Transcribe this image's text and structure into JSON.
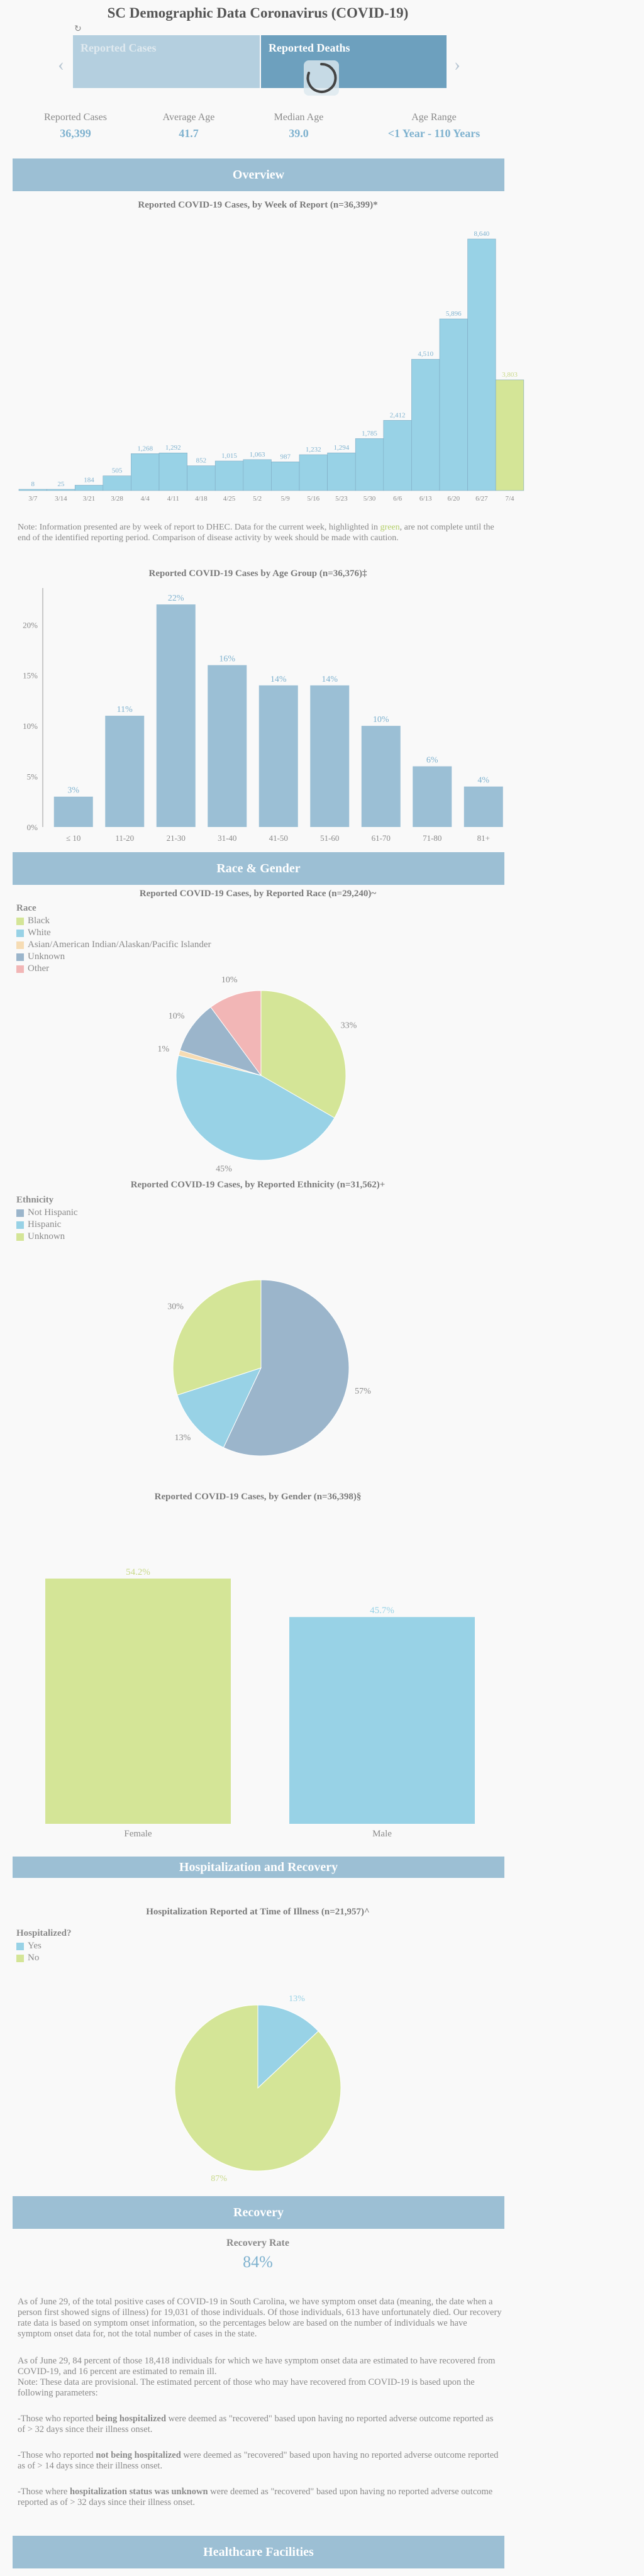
{
  "header": {
    "title": "SC Demographic Data Coronavirus (COVID-19)",
    "refresh_icon": "refresh-icon",
    "tabs": [
      {
        "label": "Reported Cases"
      },
      {
        "label": "Reported Deaths"
      }
    ],
    "prev_icon": "chevron-left-icon",
    "next_icon": "chevron-right-icon",
    "loading_icon": "spinner-icon"
  },
  "stats": [
    {
      "label": "Reported Cases",
      "value": "36,399"
    },
    {
      "label": "Average Age",
      "value": "41.7"
    },
    {
      "label": "Median Age",
      "value": "39.0"
    },
    {
      "label": "Age Range",
      "value": "<1 Year - 110 Years"
    }
  ],
  "sections": {
    "overview": "Overview",
    "race_gender": "Race & Gender",
    "hospitalization": "Hospitalization and Recovery",
    "recovery": "Recovery",
    "healthcare": "Healthcare Facilities"
  },
  "colors": {
    "accent": "#7fb2cf",
    "banner": "#9cbfd4",
    "bar": "#9bbfd5",
    "bar_light": "#98d2e6",
    "highlight": "#d4e597",
    "pink": "#f2b6b6",
    "gray_blue": "#9bb5cb",
    "cream": "#f6dcb4"
  },
  "weekly_note_parts": {
    "before": "Note: Information presented are by week of report to DHEC. Data for the current week, highlighted in ",
    "highlight": "green",
    "after": ", are not complete until the end of the identified reporting period. Comparison of disease activity by week should be made with caution."
  },
  "chart_data": [
    {
      "type": "bar",
      "title": "Reported COVID-19 Cases, by Week of Report (n=36,399)*",
      "categories": [
        "3/7",
        "3/14",
        "3/21",
        "3/28",
        "4/4",
        "4/11",
        "4/18",
        "4/25",
        "5/2",
        "5/9",
        "5/16",
        "5/23",
        "5/30",
        "6/6",
        "6/13",
        "6/20",
        "6/27",
        "7/4"
      ],
      "values": [
        8,
        25,
        184,
        505,
        1268,
        1292,
        852,
        1015,
        1063,
        987,
        1232,
        1294,
        1785,
        2412,
        4510,
        5896,
        8640,
        3803
      ],
      "labels": [
        "8",
        "25",
        "184",
        "505",
        "1,268",
        "1,292",
        "852",
        "1,015",
        "1,063",
        "987",
        "1,232",
        "1,294",
        "1,785",
        "2,412",
        "4,510",
        "5,896",
        "8,640",
        "3,803"
      ],
      "highlight_last": true,
      "ylim": [
        0,
        8640
      ],
      "grid": false
    },
    {
      "type": "bar",
      "title": "Reported COVID-19 Cases by Age Group (n=36,376)‡",
      "categories": [
        "≤ 10",
        "11-20",
        "21-30",
        "31-40",
        "41-50",
        "51-60",
        "61-70",
        "71-80",
        "81+"
      ],
      "values": [
        3,
        11,
        22,
        16,
        14,
        14,
        10,
        6,
        4
      ],
      "labels": [
        "3%",
        "11%",
        "22%",
        "16%",
        "14%",
        "14%",
        "10%",
        "6%",
        "4%"
      ],
      "yticks": [
        "0%",
        "5%",
        "10%",
        "15%",
        "20%"
      ],
      "ylim": [
        0,
        23
      ],
      "grid": false
    },
    {
      "type": "pie",
      "title": "Reported COVID-19 Cases, by Reported Race (n=29,240)~",
      "legend_title": "Race",
      "legend_position": "top-left",
      "slices": [
        {
          "name": "Black",
          "value": 33,
          "label": "33%",
          "color": "#d4e597"
        },
        {
          "name": "White",
          "value": 45,
          "label": "45%",
          "color": "#98d2e6"
        },
        {
          "name": "Asian/American Indian/Alaskan/Pacific Islander",
          "value": 1,
          "label": "1%",
          "color": "#f6dcb4"
        },
        {
          "name": "Unknown",
          "value": 10,
          "label": "10%",
          "color": "#9bb5cb"
        },
        {
          "name": "Other",
          "value": 10,
          "label": "10%",
          "color": "#f2b6b6"
        }
      ]
    },
    {
      "type": "pie",
      "title": "Reported COVID-19 Cases, by Reported Ethnicity (n=31,562)+",
      "legend_title": "Ethnicity",
      "legend_position": "top-left",
      "slices": [
        {
          "name": "Not Hispanic",
          "value": 57,
          "label": "57%",
          "color": "#9bb5cb"
        },
        {
          "name": "Hispanic",
          "value": 13,
          "label": "13%",
          "color": "#98d2e6"
        },
        {
          "name": "Unknown",
          "value": 30,
          "label": "30%",
          "color": "#d4e597"
        }
      ]
    },
    {
      "type": "bar",
      "title": "Reported COVID-19 Cases, by Gender (n=36,398)§",
      "categories": [
        "Female",
        "Male"
      ],
      "values": [
        54.2,
        45.7
      ],
      "labels": [
        "54.2%",
        "45.7%"
      ],
      "colors": [
        "#d4e597",
        "#98d2e6"
      ],
      "ylim": [
        0,
        54.2
      ]
    },
    {
      "type": "pie",
      "title": "Hospitalization Reported at Time of Illness (n=21,957)^",
      "legend_title": "Hospitalized?",
      "legend_position": "top-left",
      "slices": [
        {
          "name": "Yes",
          "value": 13,
          "label": "13%",
          "color": "#98d2e6"
        },
        {
          "name": "No",
          "value": 87,
          "label": "87%",
          "color": "#d4e597"
        }
      ]
    }
  ],
  "recovery": {
    "label": "Recovery Rate",
    "value": "84%",
    "paragraphs": [
      "As of June 29, of the total positive cases of COVID-19 in South Carolina, we have symptom onset data (meaning, the date when a person first showed signs of illness) for 19,031 of those individuals. Of those individuals, 613 have unfortunately died. Our recovery rate data is based on symptom onset information, so the percentages below are based on the number of individuals we have symptom onset data for, not the total number of cases in the state.",
      "As of June 29, 84 percent of those 18,418 individuals for which we have symptom onset data are estimated to have recovered from COVID-19, and 16 percent are estimated to remain ill.",
      "Note: These data are provisional. The estimated percent of those who may have recovered from COVID-19 is based upon the following parameters:"
    ],
    "bullets": [
      {
        "before": "-Those who reported ",
        "bold": "being hospitalized",
        "after": " were deemed as \"recovered\" based upon having no reported adverse outcome reported as of > 32 days since their illness onset."
      },
      {
        "before": "-Those who reported ",
        "bold": "not being hospitalized",
        "after": " were deemed as \"recovered\" based upon having no reported adverse outcome reported as of > 14 days since their illness onset."
      },
      {
        "before": "-Those where ",
        "bold": "hospitalization status was unknown",
        "after": " were deemed as \"recovered\" based upon having no reported adverse outcome reported as of > 32 days since their illness onset."
      }
    ]
  }
}
